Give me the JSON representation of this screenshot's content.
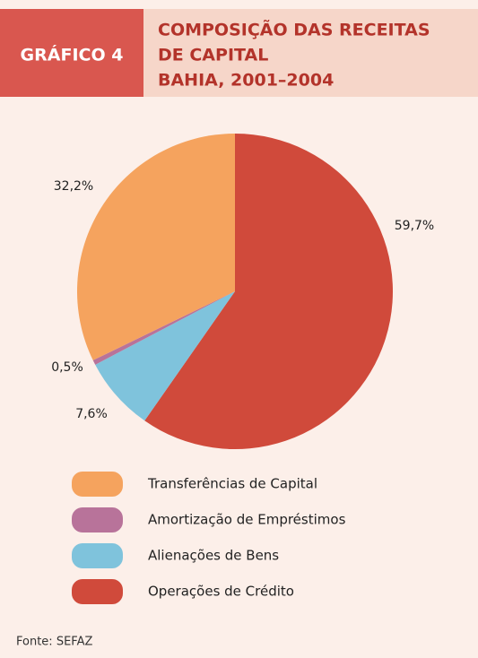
{
  "chart_data": {
    "type": "pie",
    "label": "GRÁFICO 4",
    "title": [
      "COMPOSIÇÃO DAS RECEITAS",
      "DE CAPITAL",
      "BAHIA, 2001–2004"
    ],
    "categories": [
      "Transferências de Capital",
      "Amortização de Empréstimos",
      "Alienações de Bens",
      "Operações de Crédito"
    ],
    "values": [
      32.2,
      0.5,
      7.6,
      59.7
    ],
    "value_labels": [
      "32,2%",
      "0,5%",
      "7,6%",
      "59,7%"
    ],
    "colors": [
      "#f5a35e",
      "#b8739a",
      "#7fc3dc",
      "#d04a3b"
    ],
    "source": "Fonte: SEFAZ"
  }
}
